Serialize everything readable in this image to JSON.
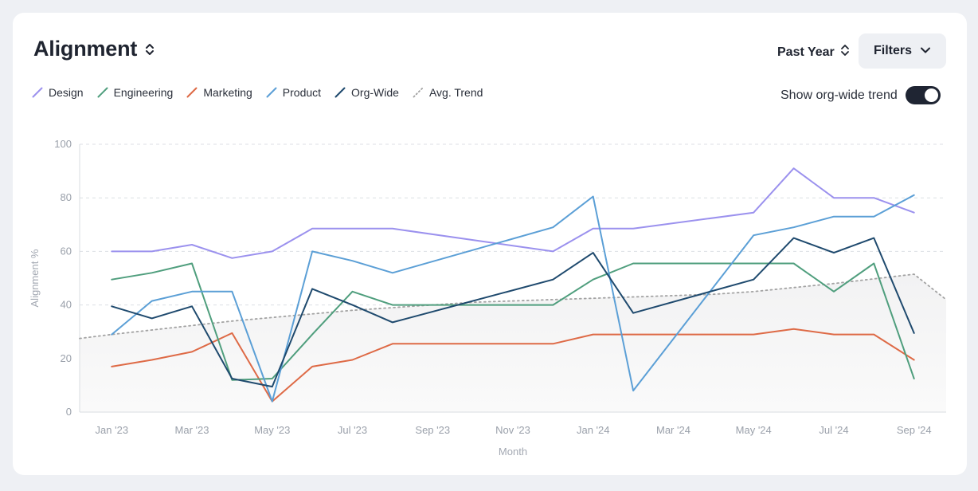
{
  "header": {
    "title": "Alignment",
    "range_label": "Past Year",
    "filters_label": "Filters",
    "toggle_label": "Show org-wide trend",
    "toggle_on": true
  },
  "colors": {
    "Design": "#9b91ee",
    "Engineering": "#4f9e7d",
    "Marketing": "#de6a46",
    "Product": "#5b9fd6",
    "Org-Wide": "#1f4a6e",
    "Avg. Trend": "#a3a3a3"
  },
  "chart_data": {
    "type": "line",
    "title": "Alignment",
    "xlabel": "Month",
    "ylabel": "Alignment %",
    "ylim": [
      0,
      100
    ],
    "xlim": [
      -0.8,
      20.8
    ],
    "yticks": [
      0,
      20,
      40,
      60,
      80,
      100
    ],
    "grid": true,
    "tick_labels": [
      "Jan '23",
      "Mar '23",
      "May '23",
      "Jul '23",
      "Sep '23",
      "Nov '23",
      "Jan '24",
      "Mar '24",
      "May '24",
      "Jul '24",
      "Sep '24"
    ],
    "tick_positions": [
      0,
      2,
      4,
      6,
      8,
      10,
      12,
      14,
      16,
      18,
      20
    ],
    "series": [
      {
        "name": "Design",
        "points": [
          [
            0,
            60
          ],
          [
            1,
            60
          ],
          [
            2,
            62.5
          ],
          [
            3,
            57.5
          ],
          [
            4,
            60
          ],
          [
            5,
            68.5
          ],
          [
            6,
            68.5
          ],
          [
            7,
            68.5
          ],
          [
            11,
            60
          ],
          [
            12,
            68.5
          ],
          [
            13,
            68.5
          ],
          [
            16,
            74.5
          ],
          [
            17,
            91
          ],
          [
            18,
            80
          ],
          [
            19,
            80
          ],
          [
            20,
            74.5
          ]
        ]
      },
      {
        "name": "Engineering",
        "points": [
          [
            0,
            49.5
          ],
          [
            1,
            52
          ],
          [
            2,
            55.5
          ],
          [
            3,
            12
          ],
          [
            4,
            12.5
          ],
          [
            5,
            29
          ],
          [
            6,
            45
          ],
          [
            7,
            40
          ],
          [
            8,
            40
          ],
          [
            9,
            40
          ],
          [
            10,
            40
          ],
          [
            11,
            40
          ],
          [
            12,
            49.5
          ],
          [
            13,
            55.5
          ],
          [
            14,
            55.5
          ],
          [
            15,
            55.5
          ],
          [
            16,
            55.5
          ],
          [
            17,
            55.5
          ],
          [
            18,
            45
          ],
          [
            19,
            55.5
          ],
          [
            20,
            12.5
          ]
        ]
      },
      {
        "name": "Marketing",
        "points": [
          [
            0,
            17
          ],
          [
            1,
            19.5
          ],
          [
            2,
            22.5
          ],
          [
            3,
            29.5
          ],
          [
            4,
            4
          ],
          [
            5,
            17
          ],
          [
            6,
            19.5
          ],
          [
            7,
            25.5
          ],
          [
            8,
            25.5
          ],
          [
            9,
            25.5
          ],
          [
            10,
            25.5
          ],
          [
            11,
            25.5
          ],
          [
            12,
            29
          ],
          [
            13,
            29
          ],
          [
            14,
            29
          ],
          [
            15,
            29
          ],
          [
            16,
            29
          ],
          [
            17,
            31
          ],
          [
            18,
            29
          ],
          [
            19,
            29
          ],
          [
            20,
            19.5
          ]
        ]
      },
      {
        "name": "Product",
        "points": [
          [
            0,
            29
          ],
          [
            1,
            41.5
          ],
          [
            2,
            45
          ],
          [
            3,
            45
          ],
          [
            4,
            4
          ],
          [
            5,
            60
          ],
          [
            6,
            56.5
          ],
          [
            7,
            52
          ],
          [
            11,
            69
          ],
          [
            12,
            80.5
          ],
          [
            13,
            8
          ],
          [
            16,
            66
          ],
          [
            17,
            69
          ],
          [
            18,
            73
          ],
          [
            19,
            73
          ],
          [
            20,
            81
          ]
        ]
      },
      {
        "name": "Org-Wide",
        "points": [
          [
            0,
            39.5
          ],
          [
            1,
            35
          ],
          [
            2,
            39.5
          ],
          [
            3,
            12.5
          ],
          [
            4,
            9.5
          ],
          [
            5,
            46
          ],
          [
            6,
            40
          ],
          [
            7,
            33.5
          ],
          [
            11,
            49.5
          ],
          [
            12,
            59.5
          ],
          [
            13,
            37
          ],
          [
            16,
            49.5
          ],
          [
            17,
            65
          ],
          [
            18,
            59.5
          ],
          [
            19,
            65
          ],
          [
            20,
            29.5
          ]
        ]
      },
      {
        "name": "Avg. Trend",
        "points": [
          [
            -0.8,
            27.5
          ],
          [
            0,
            29
          ],
          [
            3,
            34
          ],
          [
            6,
            38
          ],
          [
            9,
            41
          ],
          [
            12,
            42.5
          ],
          [
            15,
            44
          ],
          [
            16,
            45
          ],
          [
            18,
            48
          ],
          [
            20,
            51.5
          ],
          [
            20.8,
            42
          ]
        ]
      }
    ]
  }
}
